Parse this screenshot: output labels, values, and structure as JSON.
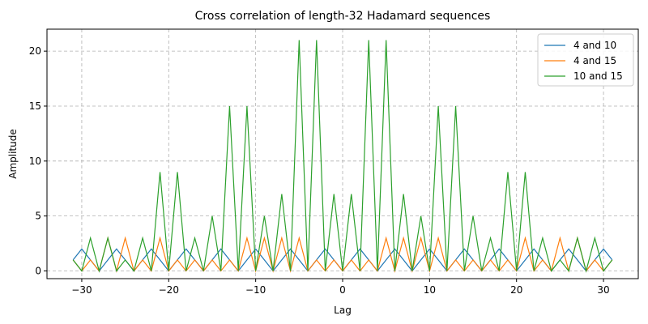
{
  "chart_data": {
    "type": "line",
    "title": "Cross correlation of length-32 Hadamard sequences",
    "xlabel": "Lag",
    "ylabel": "Amplitude",
    "xlim": [
      -34,
      34
    ],
    "ylim": [
      -0.7,
      22.0
    ],
    "xticks": [
      -30,
      -20,
      -10,
      0,
      10,
      20,
      30
    ],
    "yticks": [
      0,
      5,
      10,
      15,
      20
    ],
    "grid": true,
    "legend_position": "top-right",
    "x": [
      -31,
      -30,
      -29,
      -28,
      -27,
      -26,
      -25,
      -24,
      -23,
      -22,
      -21,
      -20,
      -19,
      -18,
      -17,
      -16,
      -15,
      -14,
      -13,
      -12,
      -11,
      -10,
      -9,
      -8,
      -7,
      -6,
      -5,
      -4,
      -3,
      -2,
      -1,
      0,
      1,
      2,
      3,
      4,
      5,
      6,
      7,
      8,
      9,
      10,
      11,
      12,
      13,
      14,
      15,
      16,
      17,
      18,
      19,
      20,
      21,
      22,
      23,
      24,
      25,
      26,
      27,
      28,
      29,
      30,
      31
    ],
    "series": [
      {
        "name": "4 and 10",
        "color": "#1f77b4",
        "values": [
          1,
          2,
          1,
          0,
          1,
          2,
          1,
          0,
          1,
          2,
          1,
          0,
          1,
          2,
          1,
          0,
          1,
          2,
          1,
          0,
          1,
          2,
          1,
          0,
          1,
          2,
          1,
          0,
          1,
          2,
          1,
          0,
          1,
          2,
          1,
          0,
          1,
          2,
          1,
          0,
          1,
          2,
          1,
          0,
          1,
          2,
          1,
          0,
          1,
          2,
          1,
          0,
          1,
          2,
          1,
          0,
          1,
          2,
          1,
          0,
          1,
          2,
          1
        ]
      },
      {
        "name": "4 and 15",
        "color": "#ff7f0e",
        "values": [
          1,
          0,
          1,
          0,
          3,
          0,
          3,
          0,
          1,
          0,
          3,
          0,
          1,
          0,
          1,
          0,
          1,
          0,
          1,
          0,
          3,
          0,
          3,
          0,
          3,
          0,
          3,
          0,
          1,
          0,
          1,
          0,
          1,
          0,
          1,
          0,
          3,
          0,
          3,
          0,
          3,
          0,
          3,
          0,
          1,
          0,
          1,
          0,
          1,
          0,
          1,
          0,
          3,
          0,
          1,
          0,
          3,
          0,
          3,
          0,
          1,
          0,
          1
        ]
      },
      {
        "name": "10 and 15",
        "color": "#2ca02c",
        "values": [
          1,
          0,
          3,
          0,
          3,
          0,
          1,
          0,
          3,
          0,
          9,
          0,
          9,
          0,
          3,
          0,
          5,
          0,
          15,
          0,
          15,
          0,
          5,
          0,
          7,
          0,
          21,
          0,
          21,
          0,
          7,
          0,
          7,
          0,
          21,
          0,
          21,
          0,
          7,
          0,
          5,
          0,
          15,
          0,
          15,
          0,
          5,
          0,
          3,
          0,
          9,
          0,
          9,
          0,
          3,
          0,
          1,
          0,
          3,
          0,
          3,
          0,
          1
        ]
      }
    ]
  }
}
